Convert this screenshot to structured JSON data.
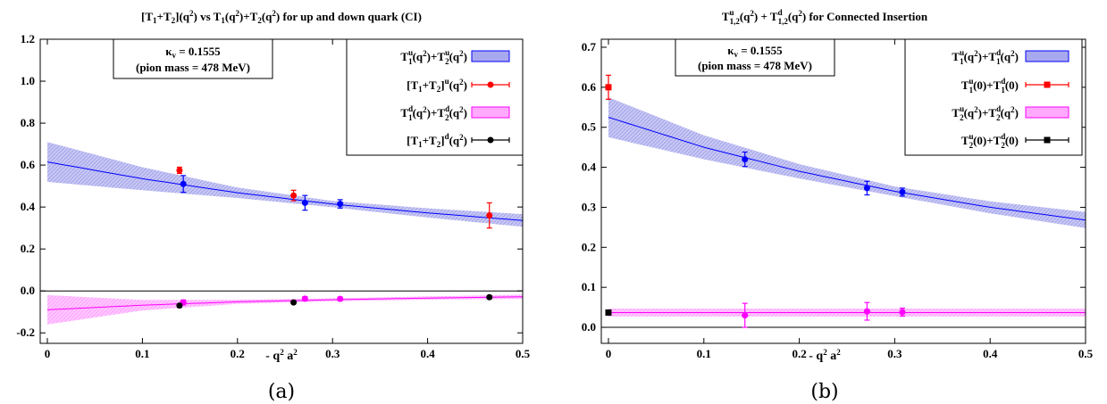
{
  "figure_captions": [
    "(a)",
    "(b)"
  ],
  "colors": {
    "blue": "#0000ff",
    "red": "#ff0000",
    "magenta": "#ff00ff",
    "black": "#000000",
    "blue_band": "#9999ee",
    "magenta_band": "#ff99ff"
  },
  "chart_data": [
    {
      "type": "scatter",
      "title": "[T1+T2](q2) vs T1(q2)+T2(q2) for up and down quark (CI)",
      "xlabel": "- q2 a2",
      "ylabel": "",
      "xlim": [
        0,
        0.5
      ],
      "ylim": [
        -0.25,
        1.2
      ],
      "xticks": [
        "0",
        "0.1",
        "0.2",
        "0.3",
        "0.4",
        "0.5"
      ],
      "yticks": [
        "-0.2",
        "0.0",
        "0.2",
        "0.4",
        "0.6",
        "0.8",
        "1.0",
        "1.2"
      ],
      "annotation": [
        "κv = 0.1555",
        "(pion mass = 478 MeV)"
      ],
      "legend": [
        "T1u(q2)+T2u(q2)",
        "[T1+T2]u(q2)",
        "T1d(q2)+T2d(q2)",
        "[T1+T2]d(q2)"
      ],
      "legend_position": "top-right",
      "bands": [
        {
          "name": "T1u(q2)+T2u(q2)",
          "color": "blue",
          "x": [
            0,
            0.1,
            0.2,
            0.3,
            0.4,
            0.5
          ],
          "y": [
            0.615,
            0.535,
            0.468,
            0.414,
            0.372,
            0.336
          ],
          "err": [
            0.095,
            0.055,
            0.025,
            0.015,
            0.022,
            0.03
          ]
        },
        {
          "name": "T1d(q2)+T2d(q2)",
          "color": "magenta",
          "x": [
            0,
            0.1,
            0.2,
            0.3,
            0.4,
            0.5
          ],
          "y": [
            -0.09,
            -0.068,
            -0.052,
            -0.042,
            -0.034,
            -0.028
          ],
          "err": [
            0.07,
            0.025,
            0.01,
            0.007,
            0.008,
            0.01
          ]
        }
      ],
      "series": [
        {
          "name": "T1u(q2)+T2u(q2)",
          "color": "blue",
          "x": [
            0.143,
            0.271,
            0.308
          ],
          "y": [
            0.51,
            0.42,
            0.415
          ],
          "err": [
            0.04,
            0.035,
            0.02
          ]
        },
        {
          "name": "[T1+T2]u(q2)",
          "color": "red",
          "x": [
            0.139,
            0.259,
            0.465
          ],
          "y": [
            0.575,
            0.455,
            0.36
          ],
          "err": [
            0.015,
            0.025,
            0.06
          ]
        },
        {
          "name": "T1d(q2)+T2d(q2)",
          "color": "magenta",
          "x": [
            0.143,
            0.271,
            0.308
          ],
          "y": [
            -0.055,
            -0.037,
            -0.038
          ],
          "err": [
            0.012,
            0.01,
            0.008
          ]
        },
        {
          "name": "[T1+T2]d(q2)",
          "color": "black",
          "x": [
            0.139,
            0.259,
            0.465
          ],
          "y": [
            -0.07,
            -0.055,
            -0.03
          ],
          "err": [
            0.008,
            0.006,
            0.006
          ]
        }
      ]
    },
    {
      "type": "scatter",
      "title": "T1,2u(q2) + T1,2d(q2) for Connected Insertion",
      "xlabel": "- q2 a2",
      "ylabel": "",
      "xlim": [
        0,
        0.5
      ],
      "ylim": [
        -0.04,
        0.72
      ],
      "xticks": [
        "0",
        "0.1",
        "0.2",
        "0.3",
        "0.4",
        "0.5"
      ],
      "yticks": [
        "0.0",
        "0.1",
        "0.2",
        "0.3",
        "0.4",
        "0.5",
        "0.6",
        "0.7"
      ],
      "annotation": [
        "κv = 0.1555",
        "(pion mass = 478 MeV)"
      ],
      "legend": [
        "T1u(q2)+T1d(q2)",
        "T1u(0)+T1d(0)",
        "T2u(q2)+T2d(q2)",
        "T2u(0)+T2d(0)"
      ],
      "legend_position": "top-right",
      "bands": [
        {
          "name": "T1u(q2)+T1d(q2)",
          "color": "blue",
          "x": [
            0,
            0.1,
            0.2,
            0.3,
            0.4,
            0.5
          ],
          "y": [
            0.525,
            0.45,
            0.39,
            0.34,
            0.3,
            0.268
          ],
          "err": [
            0.05,
            0.03,
            0.018,
            0.012,
            0.015,
            0.02
          ]
        },
        {
          "name": "T2u(q2)+T2d(q2)",
          "color": "magenta",
          "x": [
            0,
            0.1,
            0.2,
            0.3,
            0.4,
            0.5
          ],
          "y": [
            0.037,
            0.037,
            0.037,
            0.037,
            0.037,
            0.037
          ],
          "err": [
            0.01,
            0.01,
            0.01,
            0.01,
            0.01,
            0.01
          ]
        }
      ],
      "series": [
        {
          "name": "T1u(q2)+T1d(q2)",
          "color": "blue",
          "marker": "circle",
          "x": [
            0.143,
            0.271,
            0.308
          ],
          "y": [
            0.42,
            0.348,
            0.338
          ],
          "err": [
            0.018,
            0.017,
            0.01
          ]
        },
        {
          "name": "T1u(0)+T1d(0)",
          "color": "red",
          "marker": "square",
          "x": [
            0
          ],
          "y": [
            0.6
          ],
          "err": [
            0.03
          ]
        },
        {
          "name": "T2u(q2)+T2d(q2)",
          "color": "magenta",
          "marker": "circle",
          "x": [
            0.143,
            0.271,
            0.308
          ],
          "y": [
            0.03,
            0.04,
            0.038
          ],
          "err": [
            0.03,
            0.022,
            0.01
          ]
        },
        {
          "name": "T2u(0)+T2d(0)",
          "color": "black",
          "marker": "square",
          "x": [
            0
          ],
          "y": [
            0.037
          ],
          "err": [
            0.005
          ]
        }
      ]
    }
  ]
}
